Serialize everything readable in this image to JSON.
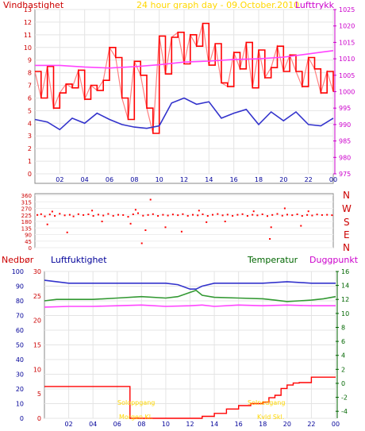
{
  "header": {
    "left_label": "Vindhastighet",
    "title": "24 hour graph day - 09.October.2010",
    "right_label": "Lufttrykk"
  },
  "direction_labels": [
    "N",
    "W",
    "S",
    "E",
    "N"
  ],
  "bottom_header": {
    "rain_label": "Nedbør",
    "humidity_label": "Luftfuktighet",
    "temperature_label": "Temperatur",
    "dewpoint_label": "Duggpunkt"
  },
  "annotations": {
    "sunrise_label": "Soloppgang",
    "sunrise_value": "Morgen Kl.",
    "sunset_label": "Solnedgang",
    "sunset_value": "Kvld Skl."
  },
  "colors": {
    "wind_red": "#ff0000",
    "wind_light": "#ff8080",
    "wind_avg_blue": "#3333cc",
    "pressure_magenta": "#ff44ff",
    "humidity_blue": "#3333cc",
    "temp_green": "#339933",
    "dew_magenta": "#ff44ff",
    "rain_red": "#ff0000",
    "axis_left_wind": "#cc0000",
    "axis_right_pressure": "#cc00cc",
    "axis_left_humidity": "#000099",
    "axis_rain": "#cc0000",
    "axis_temp": "#006600",
    "sun_text": "#ffd700"
  },
  "chart_data": [
    {
      "type": "line",
      "id": "wind-pressure",
      "x_ticks": [
        "02",
        "04",
        "06",
        "08",
        "10",
        "12",
        "14",
        "16",
        "18",
        "20",
        "22",
        "00"
      ],
      "y_left_ticks": [
        0,
        1,
        2,
        3,
        4,
        5,
        6,
        7,
        8,
        9,
        10,
        11,
        12,
        13
      ],
      "y_left_range": [
        0,
        13
      ],
      "y_right_ticks": [
        975,
        980,
        985,
        990,
        995,
        1000,
        1005,
        1010,
        1015,
        1020,
        1025
      ],
      "y_right_range": [
        975,
        1025
      ],
      "x_range": [
        0,
        24
      ],
      "series": [
        {
          "role": "wind_average",
          "x": [
            0,
            1,
            2,
            3,
            4,
            5,
            6,
            7,
            8,
            9,
            10,
            11,
            12,
            13,
            14,
            15,
            16,
            17,
            18,
            19,
            20,
            21,
            22,
            23,
            24
          ],
          "y": [
            4.3,
            4.1,
            3.5,
            4.4,
            4.0,
            4.8,
            4.3,
            3.9,
            3.7,
            3.6,
            3.8,
            5.6,
            6.0,
            5.5,
            5.7,
            4.4,
            4.8,
            5.1,
            3.9,
            4.9,
            4.2,
            4.9,
            3.9,
            3.8,
            4.4
          ]
        },
        {
          "role": "wind_gust",
          "x": [
            0,
            0.5,
            1,
            1.5,
            2,
            2.5,
            3,
            3.5,
            4,
            4.5,
            5,
            5.5,
            6,
            6.5,
            7,
            7.5,
            8,
            8.5,
            9,
            9.5,
            10,
            10.5,
            11,
            11.5,
            12,
            12.5,
            13,
            13.5,
            14,
            14.5,
            15,
            15.5,
            16,
            16.5,
            17,
            17.5,
            18,
            18.5,
            19,
            19.5,
            20,
            20.5,
            21,
            21.5,
            22,
            22.5,
            23,
            23.5,
            24
          ],
          "y": [
            8.1,
            6.0,
            8.5,
            5.2,
            6.4,
            7.1,
            6.8,
            8.2,
            5.9,
            7.0,
            6.6,
            7.4,
            10.0,
            9.2,
            6.0,
            4.3,
            8.9,
            7.8,
            5.2,
            3.2,
            10.9,
            7.9,
            10.8,
            11.2,
            8.7,
            11.0,
            10.1,
            11.9,
            8.6,
            10.3,
            7.2,
            6.9,
            9.6,
            8.3,
            10.4,
            6.8,
            9.8,
            7.6,
            8.4,
            10.1,
            8.1,
            9.4,
            8.1,
            6.9,
            9.2,
            8.3,
            6.4,
            8.1,
            6.5
          ]
        },
        {
          "role": "pressure",
          "x": [
            0,
            2,
            4,
            6,
            8,
            10,
            12,
            14,
            16,
            18,
            20,
            22,
            23,
            24
          ],
          "y": [
            1008,
            1008,
            1007.5,
            1007.2,
            1007.6,
            1008.2,
            1009,
            1009.3,
            1009.8,
            1010,
            1010.5,
            1011.5,
            1012,
            1012.5
          ]
        }
      ]
    },
    {
      "type": "scatter",
      "id": "wind-direction",
      "x_ticks": [
        "02",
        "04",
        "06",
        "08",
        "10",
        "12",
        "14",
        "16",
        "18",
        "20",
        "22",
        "00"
      ],
      "y_ticks": [
        0,
        45,
        90,
        135,
        180,
        225,
        270,
        315,
        360
      ],
      "y_range": [
        0,
        360
      ],
      "x_range": [
        0,
        24
      ],
      "series": [
        {
          "role": "direction",
          "x": [
            0.2,
            0.5,
            0.8,
            1.2,
            1.6,
            2.0,
            2.4,
            2.8,
            3.1,
            3.5,
            3.9,
            4.3,
            4.7,
            5.1,
            5.5,
            5.9,
            6.3,
            6.7,
            7.1,
            7.5,
            7.9,
            8.3,
            8.7,
            9.1,
            9.5,
            9.9,
            10.3,
            10.7,
            11.1,
            11.5,
            11.9,
            12.3,
            12.7,
            13.1,
            13.5,
            13.9,
            14.3,
            14.7,
            15.1,
            15.5,
            15.9,
            16.3,
            16.7,
            17.1,
            17.5,
            17.9,
            18.3,
            18.7,
            19.1,
            19.5,
            19.9,
            20.3,
            20.7,
            21.1,
            21.5,
            21.9,
            22.3,
            22.7,
            23.1,
            23.5,
            23.9,
            1.0,
            2.6,
            5.4,
            7.7,
            8.9,
            9.3,
            11.8,
            15.3,
            17.6,
            19.0,
            21.4,
            1.4,
            4.6,
            8.1,
            10.5,
            13.2,
            18.9,
            22.0,
            8.6,
            13.8,
            20.1
          ],
          "y": [
            225,
            230,
            215,
            228,
            218,
            233,
            222,
            226,
            215,
            230,
            224,
            229,
            218,
            227,
            221,
            232,
            219,
            226,
            224,
            212,
            229,
            237,
            220,
            225,
            230,
            218,
            226,
            221,
            228,
            223,
            230,
            219,
            226,
            222,
            229,
            218,
            226,
            231,
            222,
            227,
            219,
            226,
            230,
            218,
            226,
            222,
            229,
            217,
            225,
            232,
            220,
            227,
            223,
            229,
            218,
            225,
            221,
            228,
            224,
            226,
            223,
            160,
            105,
            180,
            165,
            120,
            330,
            110,
            180,
            250,
            140,
            150,
            248,
            255,
            260,
            140,
            255,
            60,
            250,
            30,
            175,
            270
          ]
        }
      ]
    },
    {
      "type": "line",
      "id": "humidity-temp-rain",
      "x_ticks": [
        "02",
        "04",
        "06",
        "08",
        "10",
        "12",
        "14",
        "16",
        "18",
        "20",
        "22",
        "00"
      ],
      "y_humidity_ticks": [
        0,
        10,
        20,
        30,
        40,
        50,
        60,
        70,
        80,
        90,
        100
      ],
      "y_humidity_range": [
        0,
        100
      ],
      "y_rain_ticks": [
        0,
        5,
        10,
        15,
        20,
        25,
        30
      ],
      "y_rain_range": [
        0,
        30
      ],
      "y_temp_ticks": [
        -4,
        -2,
        0,
        2,
        4,
        6,
        8,
        10,
        12,
        14,
        16
      ],
      "y_temp_range": [
        -5,
        16
      ],
      "x_range": [
        0,
        24
      ],
      "series": [
        {
          "role": "humidity",
          "x": [
            0,
            1,
            2,
            4,
            6,
            8,
            10,
            11,
            12,
            12.5,
            13,
            14,
            16,
            18,
            20,
            22,
            24
          ],
          "y": [
            94,
            93,
            92,
            92,
            92,
            92,
            92,
            91,
            88,
            88,
            90,
            92,
            92,
            92,
            93,
            92,
            92
          ]
        },
        {
          "role": "temperature",
          "x": [
            0,
            1,
            2,
            4,
            6,
            8,
            10,
            11,
            12,
            12.5,
            13,
            14,
            16,
            18,
            19,
            20,
            21,
            22,
            23,
            24
          ],
          "y": [
            11.8,
            12.0,
            12.0,
            12.0,
            12.2,
            12.4,
            12.2,
            12.4,
            13.0,
            13.3,
            12.6,
            12.3,
            12.2,
            12.1,
            11.9,
            11.7,
            11.8,
            11.9,
            12.1,
            12.4
          ]
        },
        {
          "role": "dewpoint",
          "x": [
            0,
            2,
            4,
            6,
            8,
            10,
            12,
            13,
            14,
            16,
            18,
            20,
            22,
            24
          ],
          "y": [
            10.9,
            11.0,
            11.0,
            11.1,
            11.2,
            11.0,
            11.1,
            11.2,
            11.0,
            11.2,
            11.1,
            11.2,
            11.1,
            11.1
          ]
        },
        {
          "role": "rain",
          "x": [
            0,
            2,
            4,
            6,
            7,
            7.05,
            12,
            13,
            14,
            15,
            16,
            17,
            18,
            18.5,
            19,
            19.5,
            20,
            20.5,
            21,
            22,
            24
          ],
          "y": [
            6.5,
            6.5,
            6.5,
            6.5,
            6.5,
            0,
            0,
            0.4,
            1.0,
            1.9,
            2.6,
            3.0,
            3.3,
            4.2,
            4.7,
            6.1,
            6.8,
            7.2,
            7.3,
            8.4,
            8.4
          ]
        }
      ]
    }
  ]
}
